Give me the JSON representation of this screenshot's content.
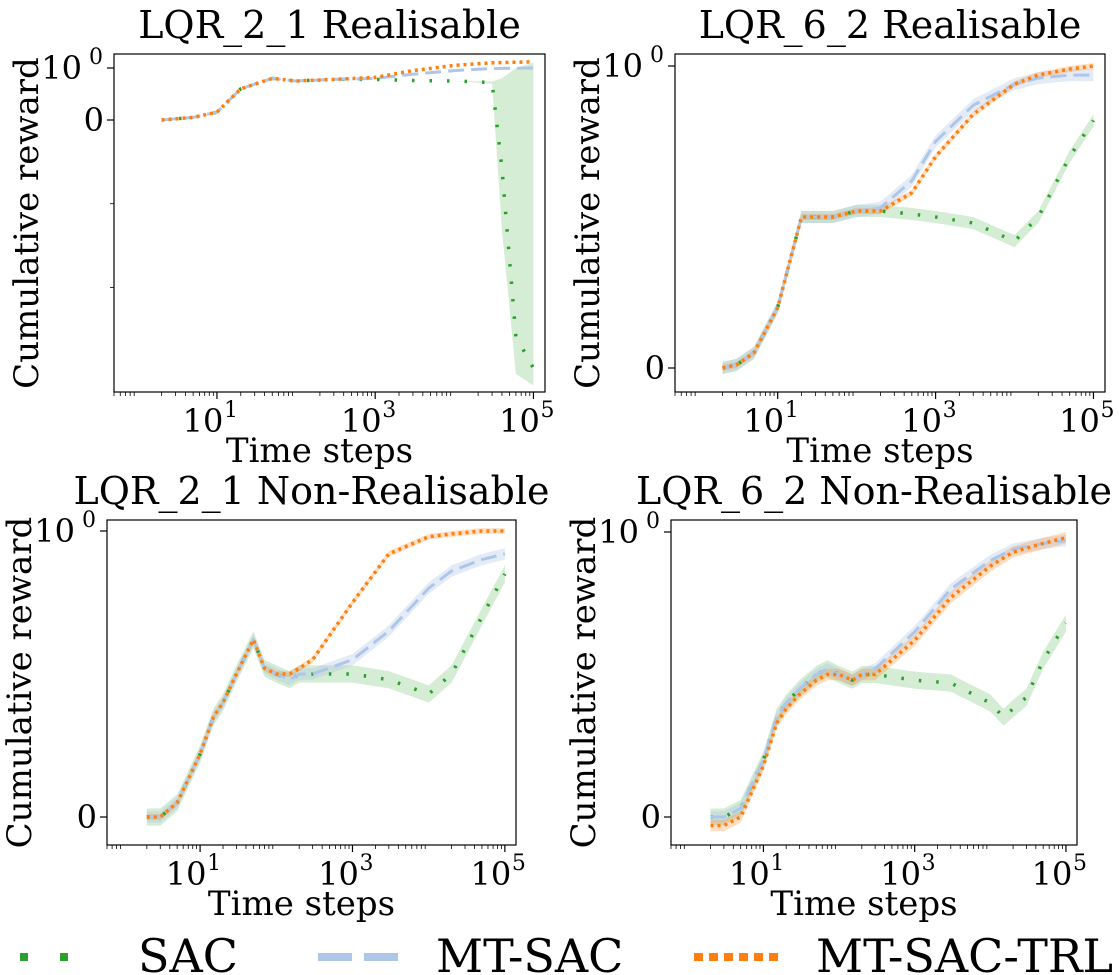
{
  "chart_data": [
    {
      "type": "line",
      "title": "LQR_2_1 Realisable",
      "xlabel": "Time steps",
      "ylabel": "Cumulative reward",
      "xscale": "log",
      "xticks": [
        {
          "exp": "1",
          "value": 10
        },
        {
          "exp": "3",
          "value": 1000
        },
        {
          "exp": "5",
          "value": 100000
        }
      ],
      "yticks": [
        {
          "label": "10",
          "exp": "0",
          "value": 1
        },
        {
          "label": "0",
          "exp": "",
          "value": 0
        }
      ],
      "ylim": [
        -8.2,
        1.6
      ],
      "yscale": "symlog",
      "series": [
        {
          "name": "SAC",
          "x": [
            2,
            5,
            10,
            20,
            50,
            100,
            300,
            1000,
            3000,
            10000,
            30000,
            40000,
            60000,
            100000
          ],
          "y": [
            0,
            0.05,
            0.15,
            0.6,
            0.8,
            0.75,
            0.78,
            0.78,
            0.76,
            0.75,
            0.72,
            -0.5,
            -5,
            -6.8
          ],
          "lower": [
            0,
            0.05,
            0.15,
            0.6,
            0.8,
            0.75,
            0.78,
            0.78,
            0.76,
            0.75,
            0.7,
            -1.5,
            -7.2,
            -8.0
          ],
          "upper": [
            0,
            0.05,
            0.15,
            0.6,
            0.8,
            0.75,
            0.78,
            0.78,
            0.76,
            0.75,
            0.74,
            0.8,
            1.0,
            1.1
          ]
        },
        {
          "name": "MT-SAC",
          "x": [
            2,
            5,
            10,
            20,
            50,
            100,
            300,
            1000,
            3000,
            10000,
            30000,
            100000
          ],
          "y": [
            0,
            0.05,
            0.15,
            0.6,
            0.8,
            0.75,
            0.78,
            0.8,
            0.88,
            0.95,
            0.99,
            1.0
          ]
        },
        {
          "name": "MT-SAC-TRL",
          "x": [
            2,
            5,
            10,
            20,
            50,
            100,
            300,
            1000,
            3000,
            10000,
            30000,
            100000
          ],
          "y": [
            0,
            0.05,
            0.15,
            0.6,
            0.8,
            0.75,
            0.78,
            0.82,
            0.95,
            1.05,
            1.1,
            1.12
          ]
        }
      ]
    },
    {
      "type": "line",
      "title": "LQR_6_2 Realisable",
      "xlabel": "Time steps",
      "ylabel": "Cumulative reward",
      "xscale": "log",
      "xticks": [
        {
          "exp": "1",
          "value": 10
        },
        {
          "exp": "3",
          "value": 1000
        },
        {
          "exp": "5",
          "value": 100000
        }
      ],
      "yticks": [
        {
          "label": "10",
          "exp": "0",
          "value": 1
        },
        {
          "label": "0",
          "exp": "",
          "value": 0
        }
      ],
      "ylim": [
        -0.05,
        1.02
      ],
      "series": [
        {
          "name": "SAC",
          "x": [
            2,
            3,
            5,
            10,
            20,
            50,
            100,
            200,
            500,
            1000,
            3000,
            10000,
            20000,
            50000,
            100000
          ],
          "y": [
            0,
            0.01,
            0.05,
            0.2,
            0.5,
            0.5,
            0.52,
            0.52,
            0.51,
            0.5,
            0.48,
            0.42,
            0.5,
            0.7,
            0.82
          ],
          "band": 0.02
        },
        {
          "name": "MT-SAC",
          "x": [
            2,
            3,
            5,
            10,
            20,
            50,
            100,
            200,
            500,
            1000,
            3000,
            10000,
            20000,
            50000,
            100000
          ],
          "y": [
            0,
            0.01,
            0.05,
            0.2,
            0.5,
            0.5,
            0.52,
            0.53,
            0.62,
            0.75,
            0.87,
            0.94,
            0.96,
            0.97,
            0.97
          ],
          "band": 0.02
        },
        {
          "name": "MT-SAC-TRL",
          "x": [
            2,
            3,
            5,
            10,
            20,
            50,
            100,
            200,
            500,
            1000,
            3000,
            10000,
            20000,
            50000,
            100000
          ],
          "y": [
            0,
            0.01,
            0.05,
            0.2,
            0.5,
            0.5,
            0.52,
            0.52,
            0.58,
            0.7,
            0.84,
            0.94,
            0.97,
            0.99,
            1.0
          ],
          "band": 0.01
        }
      ]
    },
    {
      "type": "line",
      "title": "LQR_2_1 Non-Realisable",
      "xlabel": "Time steps",
      "ylabel": "Cumulative reward",
      "xscale": "log",
      "xticks": [
        {
          "exp": "1",
          "value": 10
        },
        {
          "exp": "3",
          "value": 1000
        },
        {
          "exp": "5",
          "value": 100000
        }
      ],
      "yticks": [
        {
          "label": "10",
          "exp": "0",
          "value": 1
        },
        {
          "label": "0",
          "exp": "",
          "value": 0
        }
      ],
      "ylim": [
        -0.05,
        1.02
      ],
      "series": [
        {
          "name": "SAC",
          "x": [
            2,
            3,
            5,
            10,
            15,
            20,
            30,
            50,
            70,
            100,
            150,
            200,
            300,
            1000,
            3000,
            10000,
            20000,
            50000,
            100000
          ],
          "y": [
            0,
            0,
            0.05,
            0.22,
            0.35,
            0.4,
            0.5,
            0.62,
            0.52,
            0.5,
            0.48,
            0.5,
            0.5,
            0.5,
            0.48,
            0.43,
            0.5,
            0.7,
            0.85
          ],
          "band": 0.03
        },
        {
          "name": "MT-SAC",
          "x": [
            2,
            3,
            5,
            10,
            15,
            20,
            30,
            50,
            70,
            100,
            150,
            200,
            300,
            1000,
            3000,
            10000,
            20000,
            50000,
            100000
          ],
          "y": [
            0,
            0,
            0.05,
            0.22,
            0.35,
            0.4,
            0.5,
            0.62,
            0.52,
            0.5,
            0.48,
            0.5,
            0.5,
            0.55,
            0.65,
            0.8,
            0.86,
            0.9,
            0.92
          ],
          "band": 0.02
        },
        {
          "name": "MT-SAC-TRL",
          "x": [
            2,
            3,
            5,
            10,
            15,
            20,
            30,
            50,
            70,
            100,
            150,
            200,
            300,
            1000,
            3000,
            10000,
            20000,
            50000,
            100000
          ],
          "y": [
            0,
            0,
            0.05,
            0.22,
            0.35,
            0.4,
            0.5,
            0.62,
            0.52,
            0.5,
            0.5,
            0.52,
            0.55,
            0.75,
            0.92,
            0.98,
            0.99,
            1.0,
            1.0
          ],
          "band": 0.01
        }
      ]
    },
    {
      "type": "line",
      "title": "LQR_6_2 Non-Realisable",
      "xlabel": "Time steps",
      "ylabel": "Cumulative reward",
      "xscale": "log",
      "xticks": [
        {
          "exp": "1",
          "value": 10
        },
        {
          "exp": "3",
          "value": 1000
        },
        {
          "exp": "5",
          "value": 100000
        }
      ],
      "yticks": [
        {
          "label": "10",
          "exp": "0",
          "value": 1
        },
        {
          "label": "0",
          "exp": "",
          "value": 0
        }
      ],
      "ylim": [
        -0.05,
        1.02
      ],
      "series": [
        {
          "name": "SAC",
          "x": [
            2,
            3,
            5,
            10,
            15,
            20,
            30,
            50,
            70,
            100,
            150,
            200,
            300,
            1000,
            3000,
            10000,
            15000,
            20000,
            30000,
            50000,
            100000
          ],
          "y": [
            0,
            0,
            0.03,
            0.2,
            0.35,
            0.4,
            0.45,
            0.5,
            0.52,
            0.5,
            0.48,
            0.5,
            0.5,
            0.48,
            0.47,
            0.4,
            0.35,
            0.38,
            0.42,
            0.55,
            0.68
          ],
          "band": 0.03
        },
        {
          "name": "MT-SAC",
          "x": [
            2,
            3,
            5,
            10,
            15,
            20,
            30,
            50,
            70,
            100,
            150,
            200,
            300,
            1000,
            3000,
            10000,
            20000,
            50000,
            100000
          ],
          "y": [
            0,
            0,
            0.03,
            0.2,
            0.35,
            0.4,
            0.45,
            0.5,
            0.52,
            0.5,
            0.48,
            0.5,
            0.52,
            0.65,
            0.8,
            0.9,
            0.94,
            0.96,
            0.97
          ],
          "band": 0.02
        },
        {
          "name": "MT-SAC-TRL",
          "x": [
            2,
            3,
            5,
            10,
            15,
            20,
            30,
            50,
            70,
            100,
            150,
            200,
            300,
            1000,
            3000,
            10000,
            20000,
            50000,
            100000
          ],
          "y": [
            -0.03,
            -0.03,
            0.0,
            0.18,
            0.33,
            0.38,
            0.43,
            0.48,
            0.5,
            0.5,
            0.48,
            0.5,
            0.5,
            0.62,
            0.77,
            0.88,
            0.93,
            0.96,
            0.98
          ],
          "band": 0.02
        }
      ]
    }
  ],
  "legend": {
    "placement": "bottom",
    "entries": [
      {
        "name": "SAC",
        "color": "#2ca02c",
        "style": "dotted-sparse"
      },
      {
        "name": "MT-SAC",
        "color": "#aec7e8",
        "style": "dashed"
      },
      {
        "name": "MT-SAC-TRL",
        "color": "#ff7f0e",
        "style": "dotted-dense"
      }
    ]
  }
}
